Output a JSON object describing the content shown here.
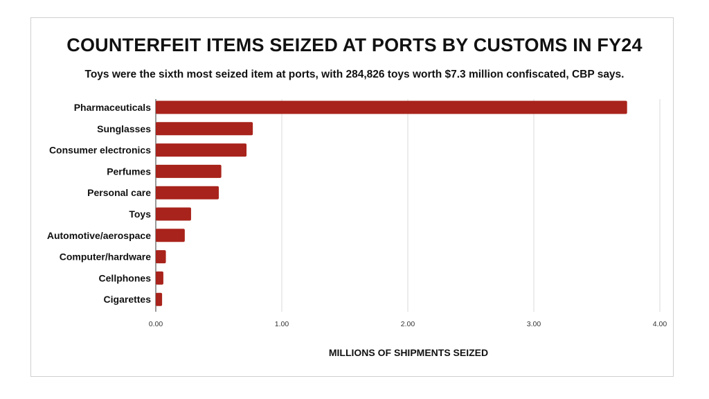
{
  "chart_data": {
    "type": "bar",
    "orientation": "horizontal",
    "title": "COUNTERFEIT ITEMS SEIZED AT PORTS BY CUSTOMS IN FY24",
    "subtitle": "Toys were the sixth most seized item at ports, with 284,826 toys worth $7.3 million confiscated, CBP says.",
    "xlabel": "MILLIONS OF SHIPMENTS SEIZED",
    "ylabel": "",
    "categories": [
      "Pharmaceuticals",
      "Sunglasses",
      "Consumer electronics",
      "Perfumes",
      "Personal care",
      "Toys",
      "Automotive/aerospace",
      "Computer/hardware",
      "Cellphones",
      "Cigarettes"
    ],
    "values": [
      3.74,
      0.77,
      0.72,
      0.52,
      0.5,
      0.28,
      0.23,
      0.08,
      0.06,
      0.05
    ],
    "xlim": [
      0,
      4
    ],
    "xticks": [
      "0.00",
      "1.00",
      "2.00",
      "3.00",
      "4.00"
    ],
    "grid": true,
    "bar_color": "#a8231b"
  }
}
